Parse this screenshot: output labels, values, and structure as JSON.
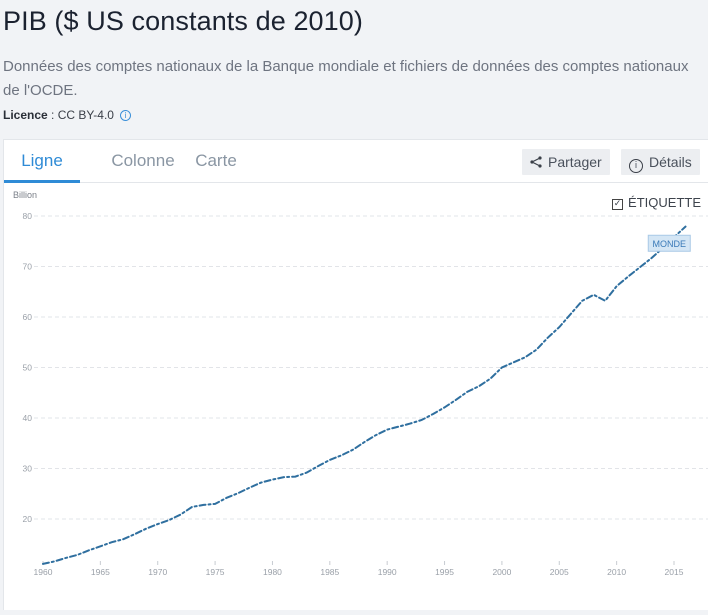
{
  "header": {
    "title": "PIB ($ US constants de 2010)",
    "subtitle": "Données des comptes nationaux de la Banque mondiale et fichiers de données des comptes nationaux de l'OCDE.",
    "licence_label": "Licence",
    "licence_sep": " : ",
    "licence_value": "CC BY-4.0",
    "info_icon": "info-circle-icon"
  },
  "tabs": [
    {
      "label": "Ligne",
      "active": true
    },
    {
      "label": "Colonne",
      "active": false
    },
    {
      "label": "Carte",
      "active": false
    }
  ],
  "actions": {
    "share_label": "Partager",
    "share_icon": "share-icon",
    "details_label": "Détails",
    "details_icon": "info-circle-icon"
  },
  "label_toggle": {
    "label": "ÉTIQUETTE",
    "checked": true
  },
  "colors": {
    "accent": "#2f8bd6",
    "line": "#2f6f9f",
    "series_label_bg": "#d4e6f5",
    "series_label_text": "#3a7ab8"
  },
  "chart_data": {
    "type": "line",
    "title": "PIB ($ US constants de 2010)",
    "ylabel": "Billion",
    "xlabel": "",
    "ylim": [
      10,
      80
    ],
    "yticks": [
      20,
      30,
      40,
      50,
      60,
      70,
      80
    ],
    "xticks": [
      1960,
      1965,
      1970,
      1975,
      1980,
      1985,
      1990,
      1995,
      2000,
      2005,
      2010,
      2015
    ],
    "grid": true,
    "line_style": "dash-dot",
    "x": [
      1960,
      1961,
      1962,
      1963,
      1964,
      1965,
      1966,
      1967,
      1968,
      1969,
      1970,
      1971,
      1972,
      1973,
      1974,
      1975,
      1976,
      1977,
      1978,
      1979,
      1980,
      1981,
      1982,
      1983,
      1984,
      1985,
      1986,
      1987,
      1988,
      1989,
      1990,
      1991,
      1992,
      1993,
      1994,
      1995,
      1996,
      1997,
      1998,
      1999,
      2000,
      2001,
      2002,
      2003,
      2004,
      2005,
      2006,
      2007,
      2008,
      2009,
      2010,
      2011,
      2012,
      2013,
      2014,
      2015,
      2016
    ],
    "series": [
      {
        "name": "MONDE",
        "values": [
          11.1,
          11.6,
          12.3,
          12.9,
          13.8,
          14.6,
          15.4,
          16.0,
          17.0,
          18.1,
          19.0,
          19.8,
          20.9,
          22.4,
          22.8,
          23.0,
          24.2,
          25.1,
          26.2,
          27.2,
          27.8,
          28.3,
          28.4,
          29.2,
          30.5,
          31.7,
          32.6,
          33.7,
          35.2,
          36.6,
          37.7,
          38.3,
          38.9,
          39.6,
          40.8,
          42.1,
          43.6,
          45.2,
          46.3,
          47.8,
          50.0,
          51.0,
          52.0,
          53.5,
          55.9,
          58.0,
          60.6,
          63.2,
          64.4,
          63.2,
          66.1,
          68.0,
          69.8,
          71.6,
          73.6,
          75.8,
          77.9
        ]
      }
    ]
  }
}
